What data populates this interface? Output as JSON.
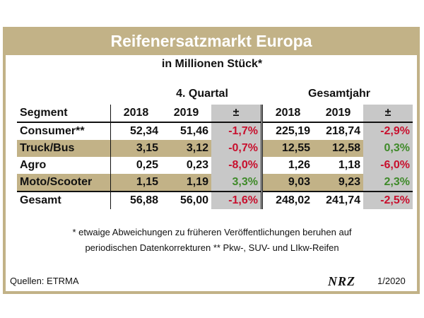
{
  "title": "Reifenersatzmarkt Europa",
  "subtitle": "in Millionen Stück*",
  "groups": {
    "q4": "4. Quartal",
    "year": "Gesamtjahr"
  },
  "columns": {
    "segment": "Segment",
    "y1": "2018",
    "y2": "2019",
    "delta": "±",
    "y3": "2018",
    "y4": "2019",
    "delta2": "±"
  },
  "rows": [
    {
      "segment": "Consumer**",
      "q18": "52,34",
      "q19": "51,46",
      "qd": "-1,7%",
      "y18": "225,19",
      "y19": "218,74",
      "yd": "-2,9%"
    },
    {
      "segment": "Truck/Bus",
      "q18": "3,15",
      "q19": "3,12",
      "qd": "-0,7%",
      "y18": "12,55",
      "y19": "12,58",
      "yd": "0,3%"
    },
    {
      "segment": "Agro",
      "q18": "0,25",
      "q19": "0,23",
      "qd": "-8,0%",
      "y18": "1,26",
      "y19": "1,18",
      "yd": "-6,0%"
    },
    {
      "segment": "Moto/Scooter",
      "q18": "1,15",
      "q19": "1,19",
      "qd": "3,3%",
      "y18": "9,03",
      "y19": "9,23",
      "yd": "2,3%"
    }
  ],
  "total": {
    "segment": "Gesamt",
    "q18": "56,88",
    "q19": "56,00",
    "qd": "-1,6%",
    "y18": "248,02",
    "y19": "241,74",
    "yd": "-2,5%"
  },
  "footnote_line1": "* etwaige Abweichungen zu früheren Veröffentlichungen beruhen auf",
  "footnote_line2": "periodischen Datenkorrekturen      ** Pkw-, SUV- und LIkw-Reifen",
  "source": "Quellen: ETRMA",
  "logo": "NRZ",
  "issue": "1/2020",
  "colors": {
    "accent": "#c2b287",
    "negative": "#c8102e",
    "positive": "#3f8a2a",
    "delta_bg": "#c8c8c8"
  }
}
